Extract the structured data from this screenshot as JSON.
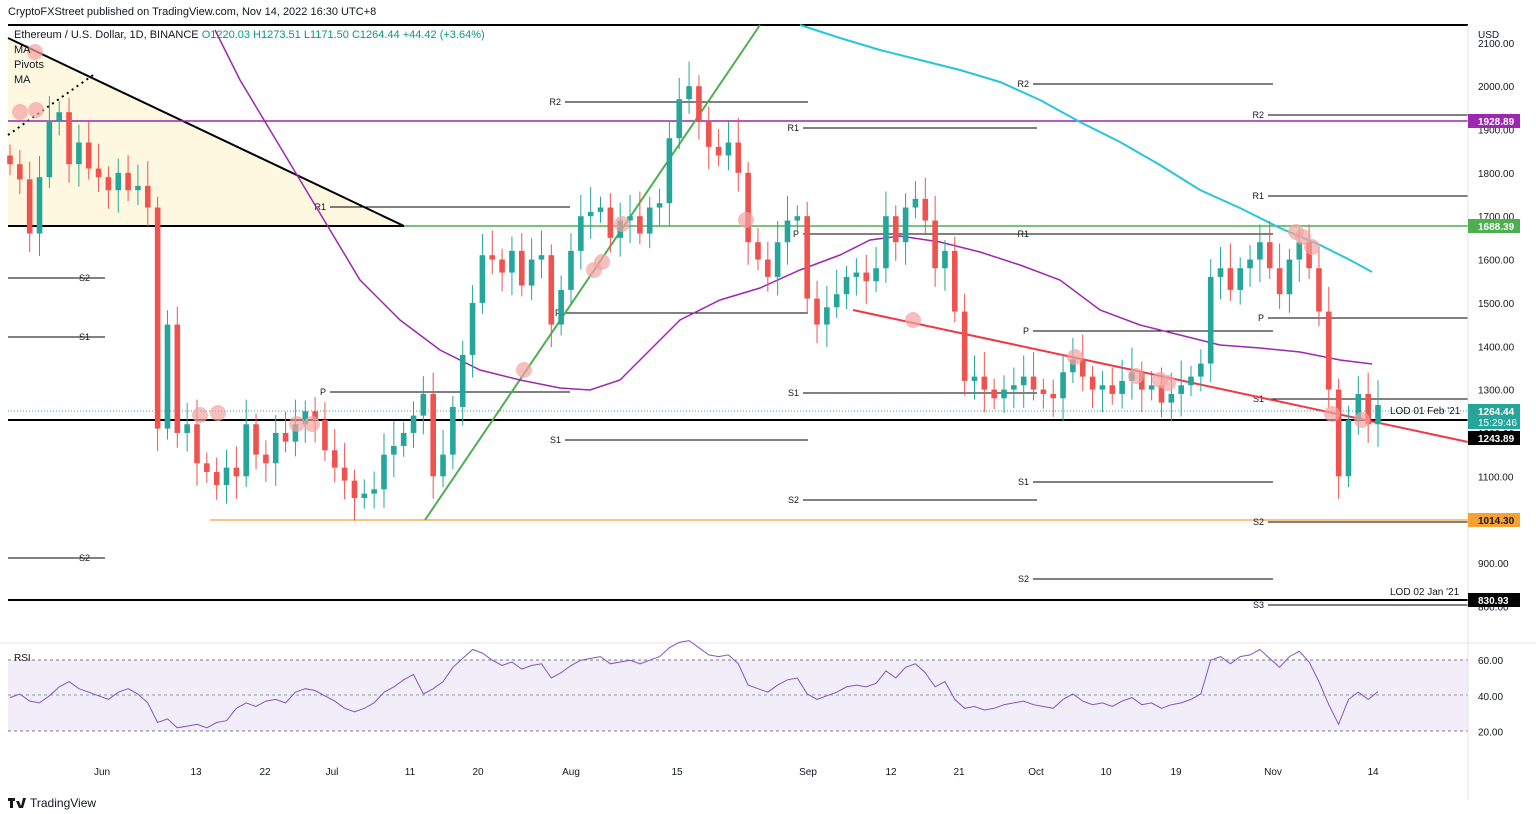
{
  "header": {
    "publisher": "CryptoFXStreet published on TradingView.com, Nov 14, 2022 16:30 UTC+8"
  },
  "legend": {
    "symbol_line": "Ethereum / U.S. Dollar, 1D, BINANCE",
    "ohlc": "O1220.03  H1273.51  L1171.50  C1264.44  +44.42 (+3.64%)",
    "indicators": [
      "MA",
      "Pivots",
      "MA"
    ]
  },
  "footer": {
    "brand": "TradingView"
  },
  "colors": {
    "up": "#26a69a",
    "down": "#ef5350",
    "ma_fast": "#9c27b0",
    "ma_slow": "#26c6da",
    "support_green": "#4caf50",
    "trend_red": "#f23645",
    "level_orange": "#f7a133",
    "rsi": "#7e57c2"
  },
  "chart_data": [
    {
      "type": "candlestick",
      "currency": "USD",
      "y_ticks": [
        800,
        900,
        1000,
        1100,
        1200,
        1300,
        1400,
        1500,
        1600,
        1700,
        1800,
        1900,
        2000,
        2100
      ],
      "ylim": [
        760,
        2170
      ],
      "x_tick_labels": [
        "Jun",
        "13",
        "22",
        "Jul",
        "11",
        "20",
        "Aug",
        "15",
        "Sep",
        "12",
        "21",
        "Oct",
        "10",
        "19",
        "Nov",
        "14"
      ],
      "last_price": "1264.44",
      "countdown": "15:29:46",
      "price_labels": [
        {
          "value": "1928.89",
          "color": "#9c27b0"
        },
        {
          "value": "1688.39",
          "color": "#4caf50"
        },
        {
          "value": "1264.44",
          "color": "#26a69a"
        },
        {
          "value": "1243.89",
          "color": "#000000"
        },
        {
          "value": "1014.30",
          "color": "#f7a133"
        },
        {
          "value": "830.93",
          "color": "#000000"
        }
      ],
      "annotations": [
        {
          "text": "LOD 01 Feb '21",
          "value": 1243.89
        },
        {
          "text": "LOD 02 Jan '21",
          "value": 830.93
        }
      ],
      "pivot_labels": [
        "R2",
        "R1",
        "P",
        "S1",
        "S2",
        "S3"
      ],
      "closes_daily": [
        1820,
        1785,
        1660,
        1790,
        1920,
        1940,
        1820,
        1870,
        1810,
        1790,
        1760,
        1800,
        1760,
        1770,
        1720,
        1210,
        1450,
        1200,
        1220,
        1130,
        1110,
        1080,
        1120,
        1100,
        1220,
        1150,
        1130,
        1200,
        1180,
        1220,
        1250,
        1230,
        1160,
        1120,
        1090,
        1050,
        1060,
        1070,
        1150,
        1170,
        1200,
        1240,
        1290,
        1100,
        1150,
        1260,
        1380,
        1500,
        1610,
        1600,
        1570,
        1620,
        1540,
        1600,
        1610,
        1450,
        1530,
        1620,
        1700,
        1710,
        1720,
        1650,
        1690,
        1700,
        1660,
        1720,
        1730,
        1880,
        1970,
        2000,
        1920,
        1860,
        1840,
        1870,
        1800,
        1640,
        1600,
        1560,
        1640,
        1690,
        1700,
        1510,
        1450,
        1490,
        1520,
        1560,
        1570,
        1550,
        1580,
        1700,
        1640,
        1720,
        1740,
        1690,
        1580,
        1620,
        1480,
        1320,
        1330,
        1300,
        1280,
        1300,
        1310,
        1330,
        1300,
        1290,
        1280,
        1340,
        1370,
        1330,
        1300,
        1310,
        1290,
        1320,
        1340,
        1300,
        1310,
        1270,
        1290,
        1310,
        1330,
        1360,
        1560,
        1580,
        1530,
        1580,
        1600,
        1640,
        1580,
        1520,
        1600,
        1640,
        1580,
        1480,
        1300,
        1100,
        1230,
        1290,
        1220,
        1264.44
      ],
      "rsi": {
        "label": "RSI",
        "y_ticks": [
          20,
          40,
          60
        ],
        "band": [
          30,
          70
        ],
        "values": [
          39,
          41,
          37,
          36,
          40,
          45,
          48,
          44,
          42,
          40,
          38,
          42,
          44,
          41,
          36,
          25,
          27,
          22,
          23,
          24,
          22,
          25,
          26,
          33,
          36,
          34,
          37,
          38,
          36,
          42,
          44,
          43,
          40,
          37,
          33,
          31,
          33,
          36,
          42,
          45,
          49,
          52,
          41,
          44,
          48,
          56,
          61,
          66,
          64,
          60,
          57,
          59,
          55,
          57,
          58,
          50,
          53,
          57,
          60,
          61,
          62,
          58,
          59,
          60,
          58,
          60,
          62,
          67,
          70,
          71,
          67,
          63,
          62,
          63,
          58,
          46,
          44,
          42,
          46,
          49,
          50,
          41,
          38,
          40,
          42,
          45,
          46,
          45,
          47,
          54,
          50,
          56,
          58,
          53,
          45,
          48,
          38,
          33,
          34,
          32,
          33,
          35,
          36,
          37,
          35,
          34,
          33,
          38,
          41,
          37,
          35,
          36,
          34,
          37,
          39,
          35,
          36,
          33,
          35,
          36,
          38,
          41,
          60,
          62,
          58,
          62,
          63,
          66,
          61,
          56,
          62,
          65,
          59,
          48,
          35,
          24,
          38,
          42,
          38,
          42.35
        ]
      }
    }
  ]
}
